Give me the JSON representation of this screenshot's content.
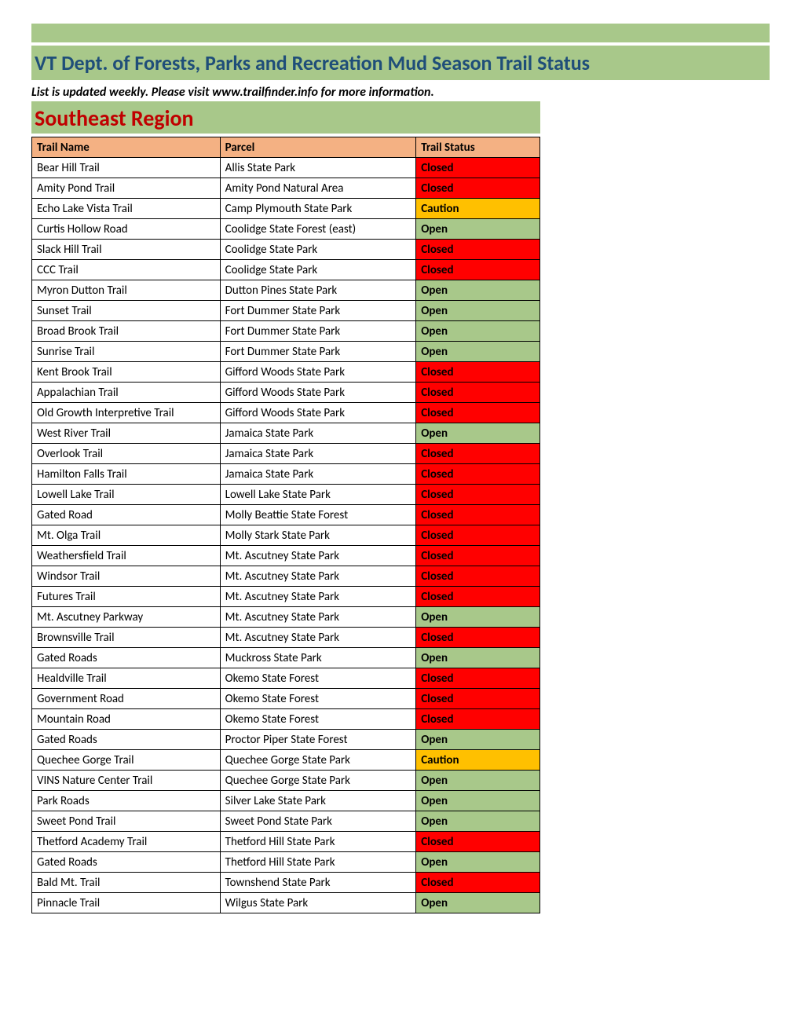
{
  "header": {
    "title": "VT Dept. of Forests, Parks and Recreation Mud Season Trail Status",
    "subtitle": "List is updated weekly. Please visit www.trailfinder.info for more information.",
    "region": "Southeast Region"
  },
  "columns": {
    "trail": "Trail Name",
    "parcel": "Parcel",
    "status": "Trail Status"
  },
  "status_colors": {
    "Open": "#a8c88a",
    "Closed": "#ff0000",
    "Caution": "#ffc000"
  },
  "colors": {
    "banner_bg": "#a8c88a",
    "header_bg": "#f4b183",
    "title_color": "#1f4e79",
    "region_color": "#c00000",
    "border": "#000000"
  },
  "rows": [
    {
      "trail": "Bear Hill Trail",
      "parcel": "Allis State Park",
      "status": "Closed"
    },
    {
      "trail": "Amity Pond Trail",
      "parcel": "Amity Pond Natural Area",
      "status": "Closed"
    },
    {
      "trail": "Echo Lake Vista Trail",
      "parcel": "Camp Plymouth State Park",
      "status": "Caution"
    },
    {
      "trail": "Curtis Hollow Road",
      "parcel": "Coolidge State Forest (east)",
      "status": "Open"
    },
    {
      "trail": "Slack Hill Trail",
      "parcel": "Coolidge State Park",
      "status": "Closed"
    },
    {
      "trail": "CCC Trail",
      "parcel": "Coolidge State Park",
      "status": "Closed"
    },
    {
      "trail": "Myron Dutton Trail",
      "parcel": "Dutton Pines State Park",
      "status": "Open"
    },
    {
      "trail": "Sunset Trail",
      "parcel": "Fort Dummer State Park",
      "status": "Open"
    },
    {
      "trail": "Broad Brook Trail",
      "parcel": "Fort Dummer State Park",
      "status": "Open"
    },
    {
      "trail": "Sunrise Trail",
      "parcel": "Fort Dummer State Park",
      "status": "Open"
    },
    {
      "trail": "Kent Brook Trail",
      "parcel": "Gifford Woods State Park",
      "status": "Closed"
    },
    {
      "trail": "Appalachian Trail",
      "parcel": "Gifford Woods State Park",
      "status": "Closed"
    },
    {
      "trail": "Old Growth Interpretive Trail",
      "parcel": "Gifford Woods State Park",
      "status": "Closed"
    },
    {
      "trail": "West River Trail",
      "parcel": "Jamaica State Park",
      "status": "Open"
    },
    {
      "trail": "Overlook Trail",
      "parcel": "Jamaica State Park",
      "status": "Closed"
    },
    {
      "trail": "Hamilton Falls Trail",
      "parcel": "Jamaica State Park",
      "status": "Closed"
    },
    {
      "trail": "Lowell Lake Trail",
      "parcel": "Lowell Lake State Park",
      "status": "Closed"
    },
    {
      "trail": "Gated Road",
      "parcel": "Molly Beattie State Forest",
      "status": "Closed"
    },
    {
      "trail": "Mt. Olga Trail",
      "parcel": "Molly Stark State Park",
      "status": "Closed"
    },
    {
      "trail": "Weathersfield Trail",
      "parcel": "Mt. Ascutney State Park",
      "status": "Closed"
    },
    {
      "trail": "Windsor Trail",
      "parcel": "Mt. Ascutney State Park",
      "status": "Closed"
    },
    {
      "trail": "Futures Trail",
      "parcel": "Mt. Ascutney State Park",
      "status": "Closed"
    },
    {
      "trail": "Mt. Ascutney Parkway",
      "parcel": "Mt. Ascutney State Park",
      "status": "Open"
    },
    {
      "trail": "Brownsville Trail",
      "parcel": "Mt. Ascutney State Park",
      "status": "Closed"
    },
    {
      "trail": "Gated Roads",
      "parcel": "Muckross State Park",
      "status": "Open"
    },
    {
      "trail": "Healdville Trail",
      "parcel": "Okemo State Forest",
      "status": "Closed"
    },
    {
      "trail": "Government Road",
      "parcel": "Okemo State Forest",
      "status": "Closed"
    },
    {
      "trail": "Mountain Road",
      "parcel": "Okemo State Forest",
      "status": "Closed"
    },
    {
      "trail": "Gated Roads",
      "parcel": "Proctor Piper State Forest",
      "status": "Open"
    },
    {
      "trail": "Quechee Gorge Trail",
      "parcel": "Quechee Gorge State Park",
      "status": "Caution"
    },
    {
      "trail": "VINS Nature Center Trail",
      "parcel": "Quechee Gorge State Park",
      "status": "Open"
    },
    {
      "trail": "Park Roads",
      "parcel": "Silver Lake State Park",
      "status": "Open"
    },
    {
      "trail": "Sweet Pond Trail",
      "parcel": "Sweet Pond State Park",
      "status": "Open"
    },
    {
      "trail": "Thetford Academy Trail",
      "parcel": "Thetford Hill State Park",
      "status": "Closed"
    },
    {
      "trail": "Gated Roads",
      "parcel": "Thetford Hill State Park",
      "status": "Open"
    },
    {
      "trail": "Bald Mt. Trail",
      "parcel": "Townshend State Park",
      "status": "Closed"
    },
    {
      "trail": "Pinnacle Trail",
      "parcel": "Wilgus State Park",
      "status": "Open"
    }
  ]
}
